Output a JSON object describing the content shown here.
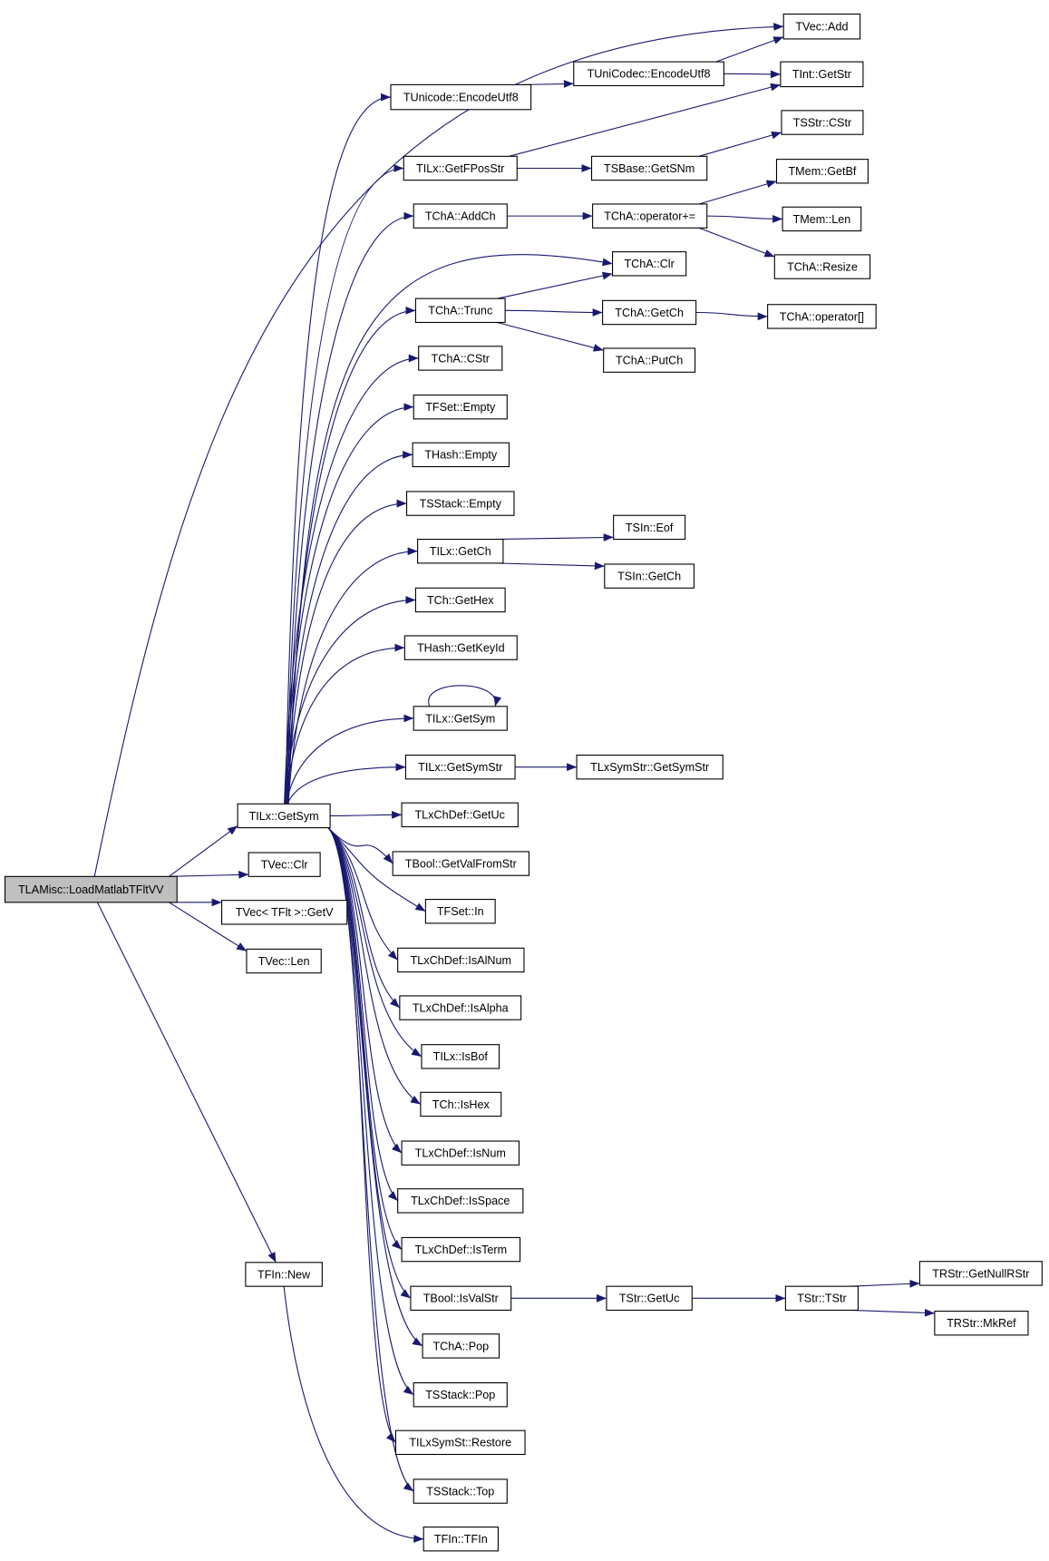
{
  "graph": {
    "type": "call-graph",
    "root": 0,
    "colors": {
      "edge": "#191970",
      "root_fill": "#bfbfbf",
      "node_fill": "#ffffff",
      "node_border": "#000000"
    },
    "nodes": [
      {
        "label": "TLAMisc::LoadMatlabTFltVV"
      },
      {
        "label": "TILx::GetSym"
      },
      {
        "label": "TVec::Clr"
      },
      {
        "label": "TVec< TFlt >::GetV"
      },
      {
        "label": "TVec::Len"
      },
      {
        "label": "TFIn::New"
      },
      {
        "label": "TUnicode::EncodeUtf8"
      },
      {
        "label": "TILx::GetFPosStr"
      },
      {
        "label": "TChA::AddCh"
      },
      {
        "label": "TChA::Trunc"
      },
      {
        "label": "TChA::CStr"
      },
      {
        "label": "TFSet::Empty"
      },
      {
        "label": "THash::Empty"
      },
      {
        "label": "TSStack::Empty"
      },
      {
        "label": "TILx::GetCh"
      },
      {
        "label": "TCh::GetHex"
      },
      {
        "label": "THash::GetKeyId"
      },
      {
        "label": "TILx::GetSym"
      },
      {
        "label": "TILx::GetSymStr"
      },
      {
        "label": "TLxChDef::GetUc"
      },
      {
        "label": "TBool::GetValFromStr"
      },
      {
        "label": "TFSet::In"
      },
      {
        "label": "TLxChDef::IsAlNum"
      },
      {
        "label": "TLxChDef::IsAlpha"
      },
      {
        "label": "TILx::IsBof"
      },
      {
        "label": "TCh::IsHex"
      },
      {
        "label": "TLxChDef::IsNum"
      },
      {
        "label": "TLxChDef::IsSpace"
      },
      {
        "label": "TLxChDef::IsTerm"
      },
      {
        "label": "TBool::IsValStr"
      },
      {
        "label": "TChA::Pop"
      },
      {
        "label": "TSStack::Pop"
      },
      {
        "label": "TILxSymSt::Restore"
      },
      {
        "label": "TSStack::Top"
      },
      {
        "label": "TFIn::TFIn"
      },
      {
        "label": "TUniCodec::EncodeUtf8"
      },
      {
        "label": "TSBase::GetSNm"
      },
      {
        "label": "TChA::operator+="
      },
      {
        "label": "TChA::Clr"
      },
      {
        "label": "TChA::GetCh"
      },
      {
        "label": "TChA::PutCh"
      },
      {
        "label": "TSIn::Eof"
      },
      {
        "label": "TSIn::GetCh"
      },
      {
        "label": "TLxSymStr::GetSymStr"
      },
      {
        "label": "TStr::GetUc"
      },
      {
        "label": "TVec::Add"
      },
      {
        "label": "TInt::GetStr"
      },
      {
        "label": "TSStr::CStr"
      },
      {
        "label": "TMem::GetBf"
      },
      {
        "label": "TMem::Len"
      },
      {
        "label": "TChA::Resize"
      },
      {
        "label": "TChA::operator[]"
      },
      {
        "label": "TStr::TStr"
      },
      {
        "label": "TRStr::GetNullRStr"
      },
      {
        "label": "TRStr::MkRef"
      }
    ],
    "edges": [
      [
        0,
        1
      ],
      [
        0,
        2
      ],
      [
        0,
        3
      ],
      [
        0,
        4
      ],
      [
        0,
        5
      ],
      [
        0,
        45
      ],
      [
        1,
        6
      ],
      [
        1,
        7
      ],
      [
        1,
        8
      ],
      [
        1,
        38
      ],
      [
        1,
        9
      ],
      [
        1,
        10
      ],
      [
        1,
        11
      ],
      [
        1,
        12
      ],
      [
        1,
        13
      ],
      [
        1,
        14
      ],
      [
        1,
        15
      ],
      [
        1,
        16
      ],
      [
        1,
        17
      ],
      [
        1,
        18
      ],
      [
        1,
        19
      ],
      [
        1,
        20
      ],
      [
        1,
        21
      ],
      [
        1,
        22
      ],
      [
        1,
        23
      ],
      [
        1,
        24
      ],
      [
        1,
        25
      ],
      [
        1,
        26
      ],
      [
        1,
        27
      ],
      [
        1,
        28
      ],
      [
        1,
        29
      ],
      [
        1,
        30
      ],
      [
        1,
        31
      ],
      [
        1,
        32
      ],
      [
        1,
        33
      ],
      [
        6,
        35
      ],
      [
        35,
        45
      ],
      [
        35,
        46
      ],
      [
        7,
        46
      ],
      [
        7,
        36
      ],
      [
        36,
        47
      ],
      [
        8,
        37
      ],
      [
        37,
        48
      ],
      [
        37,
        49
      ],
      [
        37,
        50
      ],
      [
        9,
        38
      ],
      [
        9,
        39
      ],
      [
        9,
        40
      ],
      [
        39,
        51
      ],
      [
        14,
        41
      ],
      [
        14,
        42
      ],
      [
        17,
        17
      ],
      [
        18,
        43
      ],
      [
        29,
        44
      ],
      [
        44,
        52
      ],
      [
        52,
        53
      ],
      [
        52,
        54
      ],
      [
        5,
        34
      ]
    ]
  }
}
